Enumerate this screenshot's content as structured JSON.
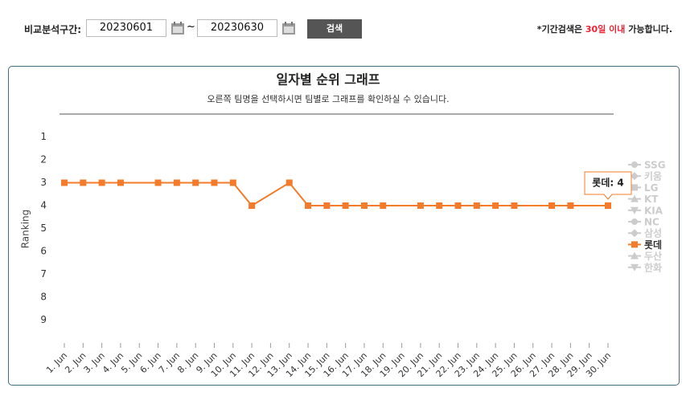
{
  "search": {
    "label": "비교분석구간:",
    "start": "20230601",
    "separator": "~",
    "end": "20230630",
    "button": "검색",
    "note": [
      "*기간검색은 ",
      "30일 이내",
      " 가능합니다."
    ]
  },
  "chart_data": {
    "type": "line",
    "title": "일자별 순위 그래프",
    "subtitle": "오른쪽 팀명을 선택하시면 팀별로 그래프를 확인하실 수 있습니다.",
    "y_label": "Ranking",
    "categories": [
      "1. Jun",
      "2. Jun",
      "3. Jun",
      "4. Jun",
      "5. Jun",
      "6. Jun",
      "7. Jun",
      "8. Jun",
      "9. Jun",
      "10. Jun",
      "11. Jun",
      "12. Jun",
      "13. Jun",
      "14. Jun",
      "15. Jun",
      "16. Jun",
      "17. Jun",
      "18. Jun",
      "19. Jun",
      "20. Jun",
      "21. Jun",
      "22. Jun",
      "23. Jun",
      "24. Jun",
      "25. Jun",
      "26. Jun",
      "27. Jun",
      "28. Jun",
      "29. Jun",
      "30. Jun"
    ],
    "series": [
      {
        "name": "롯데",
        "color": "#f47b2a",
        "values": [
          3,
          3,
          3,
          3,
          null,
          3,
          3,
          3,
          3,
          3,
          4,
          null,
          3,
          4,
          4,
          4,
          4,
          4,
          null,
          4,
          4,
          4,
          4,
          4,
          4,
          null,
          4,
          4,
          null,
          4
        ]
      }
    ],
    "connect_nulls": true,
    "ylim": [
      0,
      10
    ],
    "reversed": true,
    "yticks": [
      1,
      2,
      3,
      4,
      5,
      6,
      7,
      8,
      9
    ],
    "legend": [
      {
        "name": "SSG",
        "hidden": true
      },
      {
        "name": "키움",
        "hidden": true
      },
      {
        "name": "LG",
        "hidden": true
      },
      {
        "name": "KT",
        "hidden": true
      },
      {
        "name": "KIA",
        "hidden": true
      },
      {
        "name": "NC",
        "hidden": true
      },
      {
        "name": "삼성",
        "hidden": true
      },
      {
        "name": "롯데",
        "hidden": false
      },
      {
        "name": "두산",
        "hidden": true
      },
      {
        "name": "한화",
        "hidden": true
      }
    ],
    "hidden_color": "#cccccc",
    "tooltip": {
      "text": "롯데: 4",
      "index": 29
    }
  }
}
